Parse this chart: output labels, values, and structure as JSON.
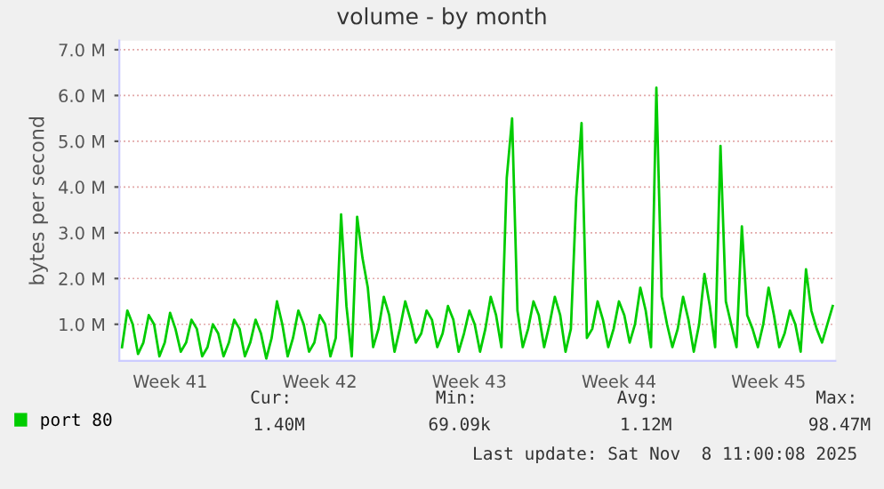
{
  "chart_data": {
    "type": "line",
    "title": "volume - by month",
    "ylabel": "bytes per second",
    "categories": [
      null,
      null,
      null,
      null,
      null,
      null,
      null,
      null,
      null,
      "Week 41",
      null,
      null,
      null,
      null,
      null,
      null,
      null,
      null,
      null,
      null,
      null,
      null,
      null,
      null,
      null,
      null,
      null,
      null,
      null,
      null,
      null,
      null,
      null,
      null,
      null,
      null,
      null,
      "Week 42",
      null,
      null,
      null,
      null,
      null,
      null,
      null,
      null,
      null,
      null,
      null,
      null,
      null,
      null,
      null,
      null,
      null,
      null,
      null,
      null,
      null,
      null,
      null,
      null,
      null,
      null,
      null,
      "Week 43",
      null,
      null,
      null,
      null,
      null,
      null,
      null,
      null,
      null,
      null,
      null,
      null,
      null,
      null,
      null,
      null,
      null,
      null,
      null,
      null,
      null,
      null,
      null,
      null,
      null,
      null,
      null,
      "Week 44",
      null,
      null,
      null,
      null,
      null,
      null,
      null,
      null,
      null,
      null,
      null,
      null,
      null,
      null,
      null,
      null,
      null,
      null,
      null,
      null,
      null,
      null,
      null,
      null,
      null,
      null,
      null,
      "Week 45",
      null,
      null,
      null,
      null,
      null,
      null,
      null,
      null,
      null,
      null,
      null,
      null
    ],
    "series": [
      {
        "name": "port 80",
        "color": "#00cc00",
        "values": [
          0.5,
          1.3,
          1.0,
          0.35,
          0.6,
          1.2,
          1.0,
          0.3,
          0.6,
          1.25,
          0.9,
          0.4,
          0.6,
          1.1,
          0.9,
          0.3,
          0.5,
          1.0,
          0.8,
          0.3,
          0.6,
          1.1,
          0.9,
          0.3,
          0.6,
          1.1,
          0.8,
          0.25,
          0.7,
          1.5,
          1.0,
          0.3,
          0.7,
          1.3,
          1.0,
          0.4,
          0.6,
          1.2,
          1.0,
          0.3,
          0.7,
          3.4,
          1.4,
          0.3,
          3.35,
          2.45,
          1.8,
          0.5,
          0.9,
          1.6,
          1.2,
          0.4,
          0.9,
          1.5,
          1.1,
          0.6,
          0.8,
          1.3,
          1.1,
          0.5,
          0.8,
          1.4,
          1.1,
          0.4,
          0.8,
          1.3,
          1.0,
          0.4,
          0.9,
          1.6,
          1.2,
          0.5,
          4.2,
          5.5,
          1.3,
          0.5,
          0.9,
          1.5,
          1.2,
          0.5,
          1.0,
          1.6,
          1.2,
          0.4,
          0.9,
          3.77,
          5.4,
          0.7,
          0.9,
          1.5,
          1.1,
          0.5,
          0.9,
          1.5,
          1.2,
          0.6,
          1.0,
          1.8,
          1.3,
          0.5,
          6.17,
          1.6,
          1.0,
          0.5,
          0.9,
          1.6,
          1.1,
          0.4,
          1.0,
          2.1,
          1.4,
          0.5,
          4.9,
          1.5,
          1.0,
          0.5,
          3.14,
          1.2,
          0.9,
          0.5,
          1.0,
          1.8,
          1.2,
          0.5,
          0.8,
          1.3,
          1.0,
          0.4,
          2.2,
          1.3,
          0.9,
          0.6,
          1.0,
          1.4
        ]
      }
    ],
    "ylim": [
      0.2,
      7.2
    ],
    "yticks": [
      {
        "value": 1,
        "label": "1.0 M"
      },
      {
        "value": 2,
        "label": "2.0 M"
      },
      {
        "value": 3,
        "label": "3.0 M"
      },
      {
        "value": 4,
        "label": "4.0 M"
      },
      {
        "value": 5,
        "label": "5.0 M"
      },
      {
        "value": 6,
        "label": "6.0 M"
      },
      {
        "value": 7,
        "label": "7.0 M"
      }
    ],
    "grid": "y",
    "legend": "bottom left",
    "annotations": [
      "Cur:",
      "Min:",
      "Avg:",
      "Max:",
      "1.40M",
      "69.09k",
      "1.12M",
      "98.47M",
      "Last update: Sat Nov  8 11:00:08 2025"
    ]
  }
}
